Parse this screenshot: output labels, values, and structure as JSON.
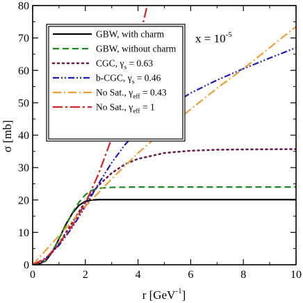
{
  "chart_data": {
    "type": "line",
    "xlabel": "r [GeV",
    "xlabel_sup": "-1",
    "xlabel_close": "]",
    "ylabel": "σ [mb]",
    "xlim": [
      0,
      10
    ],
    "ylim": [
      0,
      80
    ],
    "xticks": [
      "0",
      "2",
      "4",
      "6",
      "8",
      "10"
    ],
    "yticks": [
      "0",
      "10",
      "20",
      "30",
      "40",
      "50",
      "60",
      "70",
      "80"
    ],
    "grid": false,
    "legend_position": "top-left",
    "annotation": {
      "base": "x = 10",
      "sup": "-5"
    },
    "series": [
      {
        "name": "GBW, with charm",
        "label": {
          "main": "GBW, with charm"
        },
        "color": "#000000",
        "dash": "solid",
        "x": [
          0,
          0.25,
          0.5,
          0.75,
          1.0,
          1.25,
          1.5,
          1.75,
          2.0,
          2.25,
          2.5,
          3,
          4,
          6,
          8,
          10
        ],
        "y": [
          0,
          0.3,
          1.2,
          4.0,
          8.0,
          12.3,
          15.8,
          18.3,
          19.6,
          20.0,
          20.1,
          20.1,
          20.1,
          20.1,
          20.1,
          20.1
        ]
      },
      {
        "name": "GBW, without charm",
        "label": {
          "main": "GBW, without charm"
        },
        "color": "#1a8a1a",
        "dash": "dashed",
        "x": [
          0,
          0.25,
          0.5,
          0.75,
          1.0,
          1.25,
          1.5,
          1.75,
          2.0,
          2.25,
          2.5,
          3,
          4,
          6,
          8,
          10
        ],
        "y": [
          0,
          0.3,
          1.3,
          4.2,
          8.0,
          12.0,
          15.9,
          19.2,
          21.6,
          23.0,
          23.6,
          23.9,
          24.0,
          24.0,
          24.0,
          24.0
        ]
      },
      {
        "name": "CGC, γs = 0.63",
        "label": {
          "main": "CGC, γ",
          "sub": "s",
          "tail": " = 0.63"
        },
        "color": "#6b1a4a",
        "dash": "dotted",
        "x": [
          0,
          0.5,
          1.0,
          1.5,
          2.0,
          2.5,
          3.0,
          3.5,
          4.0,
          5.0,
          6.0,
          7.0,
          8.0,
          10
        ],
        "y": [
          0,
          1.5,
          6.5,
          13.0,
          19.5,
          24.5,
          28.3,
          31.0,
          32.7,
          34.5,
          35.2,
          35.5,
          35.6,
          35.7
        ]
      },
      {
        "name": "b-CGC, γs = 0.46",
        "label": {
          "main": "b-CGC, γ",
          "sub": "s",
          "tail": " = 0.46"
        },
        "color": "#1a1acc",
        "dash": "dash-dot-dot",
        "x": [
          0,
          0.5,
          1.0,
          1.5,
          2.0,
          2.5,
          3.0,
          3.5,
          4.0,
          5.0,
          6.0,
          7.0,
          8.0,
          9.0,
          10
        ],
        "y": [
          0,
          2.0,
          6.0,
          11.5,
          18.0,
          25.0,
          31.5,
          37.0,
          41.5,
          48.0,
          53.0,
          57.0,
          60.5,
          63.8,
          67.0
        ]
      },
      {
        "name": "No Sat., γeff = 0.43",
        "label": {
          "main": "No Sat., γ",
          "sub": "eff",
          "tail": " = 0.43"
        },
        "color": "#f0a030",
        "dash": "dash-dot",
        "x": [
          0,
          1,
          2,
          3,
          4,
          5,
          6,
          7,
          8,
          9,
          10
        ],
        "y": [
          0,
          9.0,
          18.0,
          26.5,
          34.5,
          41.5,
          48.0,
          54.5,
          60.5,
          67.0,
          73.5
        ]
      },
      {
        "name": "No Sat., γeff = 1",
        "label": {
          "main": "No Sat., γ",
          "sub": "eff",
          "tail": " = 1"
        },
        "color": "#e02020",
        "dash": "long-dash-dot",
        "x": [
          0,
          0.5,
          1.0,
          1.5,
          2.0,
          2.5,
          3.0,
          3.5,
          4.0,
          4.35
        ],
        "y": [
          0,
          2.0,
          6.5,
          12.0,
          19.0,
          28.0,
          39.0,
          52.0,
          68.0,
          80.0
        ]
      }
    ]
  }
}
